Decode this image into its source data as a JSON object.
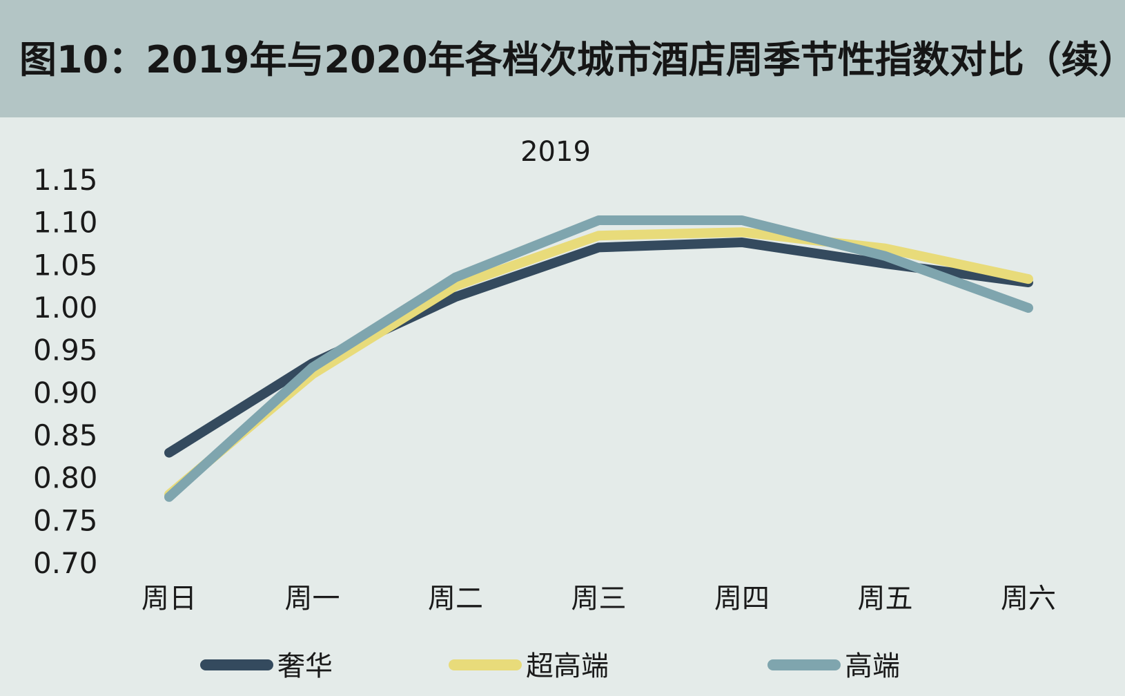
{
  "header": {
    "title": "图10：2019年与2020年各档次城市酒店周季节性指数对比（续）",
    "background": "#b3c5c5"
  },
  "panel": {
    "background": "#e4ebe9"
  },
  "chart_data": {
    "type": "line",
    "title": "2019",
    "xlabel": "",
    "ylabel": "",
    "categories": [
      "周日",
      "周一",
      "周二",
      "周三",
      "周四",
      "周五",
      "周六"
    ],
    "ylim": [
      0.7,
      1.15
    ],
    "yticks": [
      "1.15",
      "1.10",
      "1.05",
      "1.00",
      "0.95",
      "0.90",
      "0.85",
      "0.80",
      "0.75",
      "0.70"
    ],
    "grid": false,
    "legend_position": "bottom",
    "series": [
      {
        "name": "奢华",
        "color": "#344a5e",
        "values": [
          0.83,
          0.935,
          1.013,
          1.071,
          1.077,
          1.052,
          1.03
        ]
      },
      {
        "name": "超高端",
        "color": "#e8db7a",
        "values": [
          0.781,
          0.922,
          1.026,
          1.085,
          1.089,
          1.07,
          1.034
        ]
      },
      {
        "name": "高端",
        "color": "#7fa5ae",
        "values": [
          0.778,
          0.93,
          1.036,
          1.103,
          1.103,
          1.061,
          1.0
        ]
      }
    ]
  }
}
